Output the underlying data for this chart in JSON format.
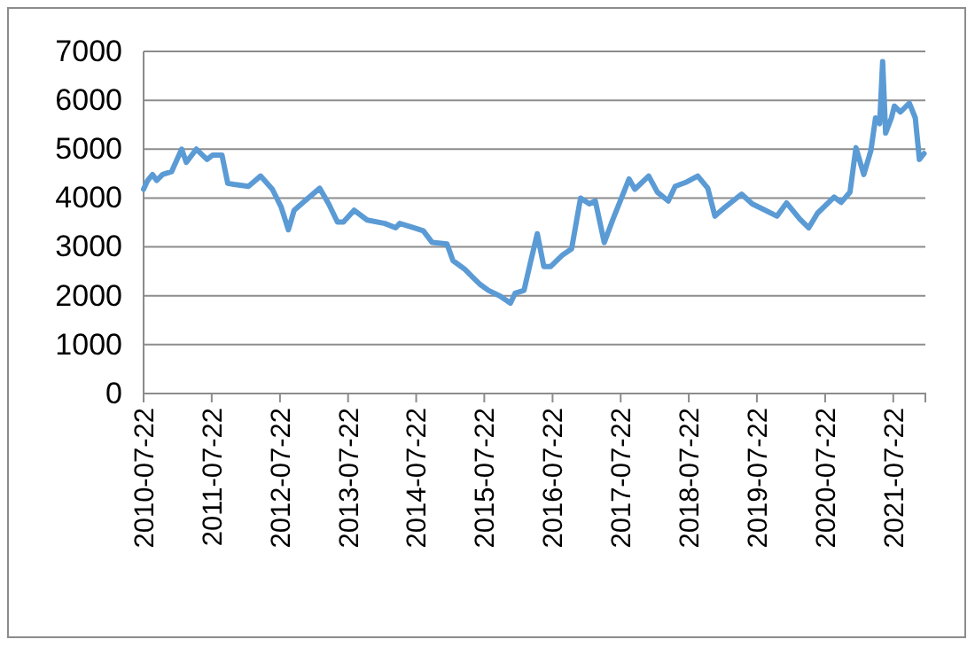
{
  "chart_data": {
    "type": "line",
    "x": [
      "2010-07-22",
      "2010-08-13",
      "2010-09-08",
      "2010-09-30",
      "2010-11-01",
      "2010-12-19",
      "2011-02-11",
      "2011-03-08",
      "2011-05-01",
      "2011-06-27",
      "2011-07-28",
      "2011-09-15",
      "2011-10-16",
      "2011-11-17",
      "2012-02-04",
      "2012-04-09",
      "2012-06-11",
      "2012-07-28",
      "2012-09-05",
      "2012-10-06",
      "2012-12-02",
      "2013-02-20",
      "2013-04-09",
      "2013-05-26",
      "2013-06-27",
      "2013-08-23",
      "2013-11-01",
      "2014-02-04",
      "2014-04-03",
      "2014-04-25",
      "2014-07-12",
      "2014-08-29",
      "2014-10-16",
      "2015-01-03",
      "2015-02-04",
      "2015-04-09",
      "2015-05-26",
      "2015-06-27",
      "2015-08-13",
      "2015-10-16",
      "2015-12-09",
      "2016-01-03",
      "2016-02-20",
      "2016-03-24",
      "2016-05-01",
      "2016-06-05",
      "2016-07-12",
      "2016-09-15",
      "2016-11-01",
      "2016-12-19",
      "2017-02-04",
      "2017-03-08",
      "2017-04-25",
      "2017-06-11",
      "2017-09-05",
      "2017-10-06",
      "2017-12-19",
      "2018-02-04",
      "2018-04-03",
      "2018-05-10",
      "2018-07-12",
      "2018-09-08",
      "2018-11-01",
      "2018-12-09",
      "2019-02-04",
      "2019-05-01",
      "2019-06-27",
      "2019-09-05",
      "2019-11-07",
      "2019-12-28",
      "2020-03-08",
      "2020-04-25",
      "2020-06-11",
      "2020-09-08",
      "2020-10-16",
      "2020-12-02",
      "2021-01-03",
      "2021-02-14",
      "2021-03-24",
      "2021-04-18",
      "2021-05-10",
      "2021-05-26",
      "2021-06-11",
      "2021-07-12",
      "2021-07-28",
      "2021-08-29",
      "2021-10-16",
      "2021-11-17",
      "2021-12-09",
      "2022-01-03"
    ],
    "series": [
      {
        "color": "#5b9bd5",
        "values": [
          4180,
          4360,
          4480,
          4360,
          4480,
          4540,
          5000,
          4730,
          5000,
          4790,
          4880,
          4880,
          4300,
          4280,
          4240,
          4450,
          4180,
          3820,
          3350,
          3750,
          3940,
          4200,
          3880,
          3510,
          3510,
          3750,
          3550,
          3480,
          3390,
          3480,
          3390,
          3330,
          3090,
          3060,
          2720,
          2540,
          2360,
          2240,
          2110,
          1990,
          1850,
          2050,
          2110,
          2660,
          3270,
          2600,
          2600,
          2840,
          2960,
          4000,
          3880,
          3940,
          3090,
          3570,
          4390,
          4180,
          4450,
          4120,
          3940,
          4240,
          4330,
          4450,
          4200,
          3630,
          3820,
          4080,
          3880,
          3750,
          3630,
          3900,
          3570,
          3390,
          3690,
          4020,
          3910,
          4120,
          5030,
          4480,
          4970,
          5640,
          5520,
          6790,
          5330,
          5640,
          5880,
          5760,
          5940,
          5640,
          4790,
          4910
        ]
      }
    ],
    "xlim": [
      "2010-07-22",
      "2022-01-10"
    ],
    "xticks": [
      "2010-07-22",
      "2011-07-22",
      "2012-07-22",
      "2013-07-22",
      "2014-07-22",
      "2015-07-22",
      "2016-07-22",
      "2017-07-22",
      "2018-07-22",
      "2019-07-22",
      "2020-07-22",
      "2021-07-22"
    ],
    "ylim": [
      0,
      7000
    ],
    "yticks": [
      0,
      1000,
      2000,
      3000,
      4000,
      5000,
      6000,
      7000
    ],
    "grid": "y",
    "line_style": "solid",
    "marker": "none"
  }
}
